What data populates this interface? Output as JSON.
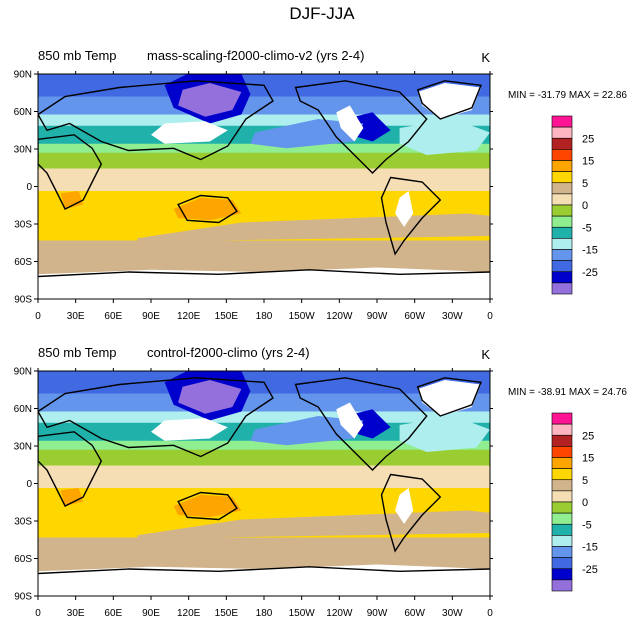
{
  "title": "DJF-JJA",
  "chart_data": {
    "type": "contour-map",
    "title": "DJF-JJA",
    "x_ticks": [
      "0",
      "30E",
      "60E",
      "90E",
      "120E",
      "150E",
      "180",
      "150W",
      "120W",
      "90W",
      "60W",
      "30W",
      "0"
    ],
    "y_ticks": [
      "90N",
      "60N",
      "30N",
      "0",
      "30S",
      "60S",
      "90S"
    ],
    "colorbar": {
      "labels": [
        "25",
        "15",
        "5",
        "0",
        "-5",
        "-15",
        "-25"
      ],
      "colors": [
        "#ff1493",
        "#ffb6c1",
        "#b22222",
        "#ff4500",
        "#ffa500",
        "#ffd700",
        "#d2b48c",
        "#f5deb3",
        "#9acd32",
        "#90ee90",
        "#20b2aa",
        "#afeeee",
        "#6495ed",
        "#4169e1",
        "#0000cd",
        "#9370db"
      ]
    },
    "panels": [
      {
        "variable": "850 mb Temp",
        "case": "mass-scaling-f2000-climo-v2 (yrs 2-4)",
        "units": "K",
        "min": "-31.79",
        "max": "22.86",
        "stats_text": "MIN = -31.79 MAX = 22.86"
      },
      {
        "variable": "850 mb Temp",
        "case": "control-f2000-climo (yrs 2-4)",
        "units": "K",
        "min": "-38.91",
        "max": "24.76",
        "stats_text": "MIN = -38.91 MAX = 24.76"
      }
    ]
  },
  "colors": {
    "band_gold": "#ffd700",
    "band_tan": "#d2b48c",
    "band_wheat": "#f5deb3",
    "band_green": "#9acd32",
    "band_lightgreen": "#90ee90",
    "band_teal": "#20b2aa",
    "band_lightcyan": "#afeeee",
    "band_cornflower": "#6495ed",
    "band_royal": "#4169e1",
    "band_medium_blue": "#0000cd",
    "band_purple": "#9370db",
    "band_orange": "#ffa500",
    "masked": "#ffffff",
    "coast": "#000000"
  }
}
